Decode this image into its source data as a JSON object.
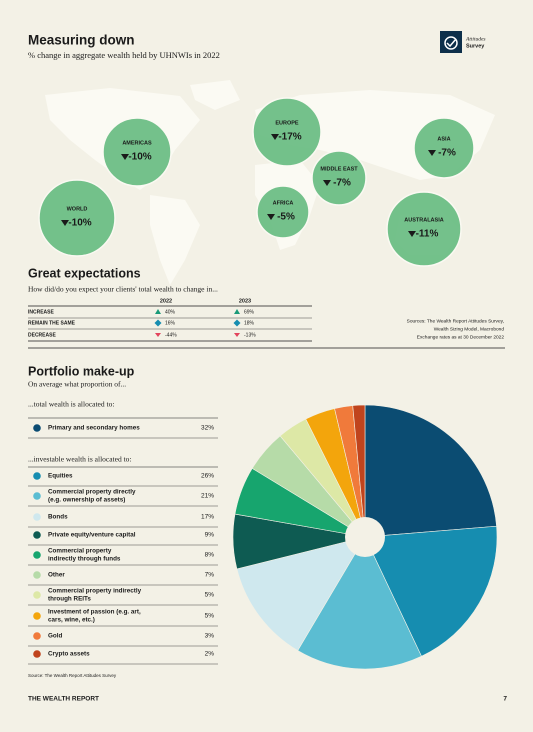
{
  "logo": {
    "lines": [
      "Attitudes",
      "Survey"
    ]
  },
  "measuring": {
    "title": "Measuring down",
    "subtitle": "% change in aggregate wealth held by UHNWIs in 2022",
    "regions": [
      {
        "name": "WORLD",
        "change": "-10%"
      },
      {
        "name": "AMERICAS",
        "change": "-10%"
      },
      {
        "name": "EUROPE",
        "change": "-17%"
      },
      {
        "name": "MIDDLE EAST",
        "change": "-7%"
      },
      {
        "name": "AFRICA",
        "change": "-5%"
      },
      {
        "name": "ASIA",
        "change": "-7%"
      },
      {
        "name": "AUSTRALASIA",
        "change": "-11%"
      }
    ]
  },
  "expectations": {
    "title": "Great expectations",
    "subtitle": "How did/do you expect your clients' total wealth to change in...",
    "columns": [
      "2022",
      "2023"
    ],
    "rows": [
      {
        "label": "INCREASE",
        "values": [
          "40%",
          "69%"
        ]
      },
      {
        "label": "REMAIN THE SAME",
        "values": [
          "16%",
          "18%"
        ]
      },
      {
        "label": "DECREASE",
        "values": [
          "-44%",
          "-13%"
        ]
      }
    ],
    "sources": [
      "Sources: The Wealth Report Attitudes Survey,",
      "Wealth Sizing Model, Macrobond",
      "Exchange rates as at 30 December 2022"
    ]
  },
  "portfolio": {
    "title": "Portfolio make-up",
    "subtitle": "On average what proportion of...",
    "total": {
      "heading": "...total wealth is allocated to:",
      "items": [
        {
          "name": [
            "Primary and secondary homes"
          ],
          "value": 32,
          "label": "32%",
          "color": "#0b4c72"
        }
      ]
    },
    "investable": {
      "heading": "...investable wealth is allocated to:",
      "items": [
        {
          "name": [
            "Equities"
          ],
          "value": 26,
          "label": "26%",
          "color": "#168db0"
        },
        {
          "name": [
            "Commercial property directly",
            "(e.g. ownership of assets)"
          ],
          "value": 21,
          "label": "21%",
          "color": "#5bbdd2"
        },
        {
          "name": [
            "Bonds"
          ],
          "value": 17,
          "label": "17%",
          "color": "#cfe8ee"
        },
        {
          "name": [
            "Private equity/venture capital"
          ],
          "value": 9,
          "label": "9%",
          "color": "#0e5b52"
        },
        {
          "name": [
            "Commercial property",
            "indirectly through funds"
          ],
          "value": 8,
          "label": "8%",
          "color": "#17a56e"
        },
        {
          "name": [
            "Other"
          ],
          "value": 7,
          "label": "7%",
          "color": "#b6dba8"
        },
        {
          "name": [
            "Commercial property indirectly",
            "through REITs"
          ],
          "value": 5,
          "label": "5%",
          "color": "#dde8a6"
        },
        {
          "name": [
            "Investment of passion (e.g. art,",
            "cars, wine, etc.)"
          ],
          "value": 5,
          "label": "5%",
          "color": "#f3a50c"
        },
        {
          "name": [
            "Gold"
          ],
          "value": 3,
          "label": "3%",
          "color": "#f07a3b"
        },
        {
          "name": [
            "Crypto assets"
          ],
          "value": 2,
          "label": "2%",
          "color": "#c0441d"
        }
      ]
    }
  },
  "footer": {
    "source": "Source: The Wealth Report Attitudes Survey",
    "publication": "THE WEALTH REPORT",
    "page": "7"
  }
}
